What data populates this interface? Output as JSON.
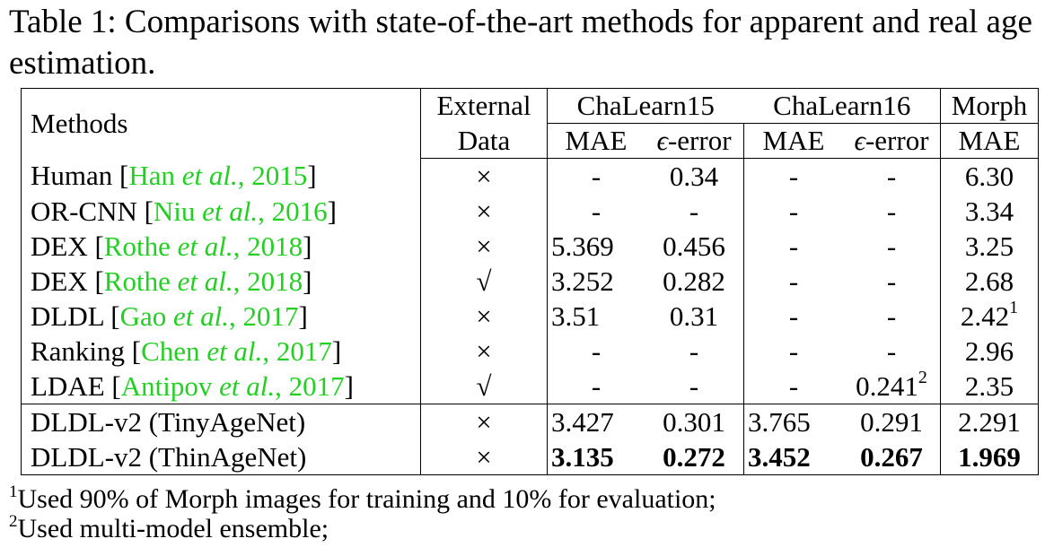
{
  "caption": "Table 1: Comparisons with state-of-the-art methods for apparent and real age estimation.",
  "header": {
    "methods": "Methods",
    "external_line1": "External",
    "external_line2": "Data",
    "chalearn15": "ChaLearn15",
    "chalearn16": "ChaLearn16",
    "morph": "Morph",
    "mae": "MAE",
    "eps": "ϵ",
    "error_suffix": "-error"
  },
  "rows": [
    {
      "name": "Human [",
      "cite_a": "Han ",
      "cite_i": "et al.",
      "cite_b": ", 2015",
      "close": "]",
      "ext": "×",
      "c15_mae": "-",
      "c15_err": "0.34",
      "c16_mae": "-",
      "c16_err": "-",
      "morph": "6.30",
      "morph_sup": "",
      "c16_err_sup": ""
    },
    {
      "name": "OR-CNN [",
      "cite_a": "Niu ",
      "cite_i": "et al.",
      "cite_b": ", 2016",
      "close": "]",
      "ext": "×",
      "c15_mae": "-",
      "c15_err": "-",
      "c16_mae": "-",
      "c16_err": "-",
      "morph": "3.34",
      "morph_sup": "",
      "c16_err_sup": ""
    },
    {
      "name": "DEX [",
      "cite_a": "Rothe ",
      "cite_i": "et al.",
      "cite_b": ", 2018",
      "close": "]",
      "ext": "×",
      "c15_mae": "5.369",
      "c15_err": "0.456",
      "c16_mae": "-",
      "c16_err": "-",
      "morph": "3.25",
      "morph_sup": "",
      "c16_err_sup": ""
    },
    {
      "name": "DEX [",
      "cite_a": "Rothe ",
      "cite_i": "et al.",
      "cite_b": ", 2018",
      "close": "]",
      "ext": "√",
      "c15_mae": "3.252",
      "c15_err": "0.282",
      "c16_mae": "-",
      "c16_err": "-",
      "morph": "2.68",
      "morph_sup": "",
      "c16_err_sup": ""
    },
    {
      "name": "DLDL [",
      "cite_a": "Gao ",
      "cite_i": "et al.",
      "cite_b": ", 2017",
      "close": "]",
      "ext": "×",
      "c15_mae": "3.51",
      "c15_err": "0.31",
      "c16_mae": "-",
      "c16_err": "-",
      "morph": "2.42",
      "morph_sup": "1",
      "c16_err_sup": ""
    },
    {
      "name": "Ranking [",
      "cite_a": "Chen ",
      "cite_i": "et al.",
      "cite_b": ", 2017",
      "close": "]",
      "ext": "×",
      "c15_mae": "-",
      "c15_err": "-",
      "c16_mae": "-",
      "c16_err": "-",
      "morph": "2.96",
      "morph_sup": "",
      "c16_err_sup": ""
    },
    {
      "name": "LDAE [",
      "cite_a": "Antipov ",
      "cite_i": "et al.",
      "cite_b": ", 2017",
      "close": "]",
      "ext": "√",
      "c15_mae": "-",
      "c15_err": "-",
      "c16_mae": "-",
      "c16_err": "0.241",
      "morph": "2.35",
      "morph_sup": "",
      "c16_err_sup": "2"
    }
  ],
  "ours": [
    {
      "name": "DLDL-v2 (TinyAgeNet)",
      "ext": "×",
      "c15_mae": "3.427",
      "c15_err": "0.301",
      "c16_mae": "3.765",
      "c16_err": "0.291",
      "morph": "2.291"
    },
    {
      "name": "DLDL-v2 (ThinAgeNet)",
      "ext": "×",
      "c15_mae": "3.135",
      "c15_err": "0.272",
      "c16_mae": "3.452",
      "c16_err": "0.267",
      "morph": "1.969"
    }
  ],
  "footnotes": [
    {
      "mark": "1",
      "text": "Used 90% of Morph images for training and 10% for evaluation;"
    },
    {
      "mark": "2",
      "text": "Used multi-model ensemble;"
    }
  ]
}
